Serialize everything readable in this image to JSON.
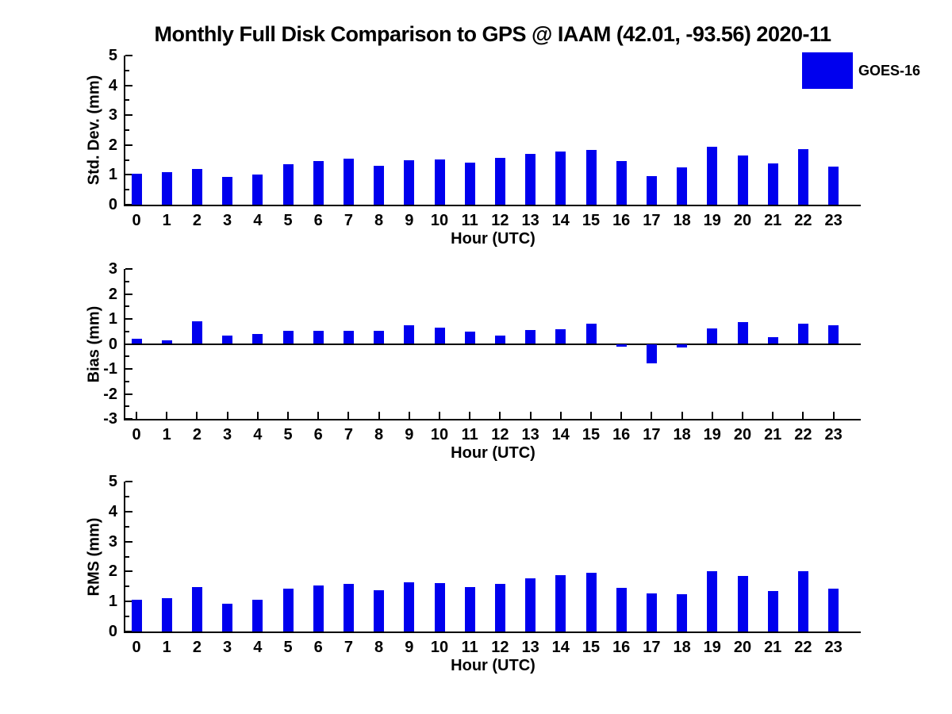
{
  "title": "Monthly Full Disk Comparison to GPS @ IAAM (42.01, -93.56) 2020-11",
  "legend": {
    "label": "GOES-16",
    "color": "#0000EE",
    "position": "top-right"
  },
  "colors": {
    "bar": "#0000EE",
    "axis": "#000000",
    "text": "#000000",
    "background": "#FFFFFF"
  },
  "chart_data": [
    {
      "type": "bar",
      "name": "std-dev-by-hour",
      "ylabel": "Std. Dev. (mm)",
      "xlabel": "Hour (UTC)",
      "ylim": [
        0,
        5
      ],
      "yticks": [
        0,
        1,
        2,
        3,
        4,
        5
      ],
      "grid": false,
      "categories": [
        "0",
        "1",
        "2",
        "3",
        "4",
        "5",
        "6",
        "7",
        "8",
        "9",
        "10",
        "11",
        "12",
        "13",
        "14",
        "15",
        "16",
        "17",
        "18",
        "19",
        "20",
        "21",
        "22",
        "23"
      ],
      "values": [
        1.05,
        1.1,
        1.2,
        0.92,
        1.0,
        1.35,
        1.47,
        1.53,
        1.3,
        1.5,
        1.52,
        1.4,
        1.57,
        1.7,
        1.78,
        1.83,
        1.47,
        0.97,
        1.25,
        1.95,
        1.64,
        1.38,
        1.87,
        1.27
      ]
    },
    {
      "type": "bar",
      "name": "bias-by-hour",
      "ylabel": "Bias (mm)",
      "xlabel": "Hour (UTC)",
      "ylim": [
        -3,
        3
      ],
      "yticks": [
        -3,
        -2,
        -1,
        0,
        1,
        2,
        3
      ],
      "grid": false,
      "categories": [
        "0",
        "1",
        "2",
        "3",
        "4",
        "5",
        "6",
        "7",
        "8",
        "9",
        "10",
        "11",
        "12",
        "13",
        "14",
        "15",
        "16",
        "17",
        "18",
        "19",
        "20",
        "21",
        "22",
        "23"
      ],
      "values": [
        0.22,
        0.15,
        0.92,
        0.32,
        0.4,
        0.52,
        0.52,
        0.52,
        0.52,
        0.74,
        0.64,
        0.49,
        0.34,
        0.56,
        0.58,
        0.82,
        -0.1,
        -0.78,
        -0.15,
        0.62,
        0.86,
        0.28,
        0.8,
        0.74
      ]
    },
    {
      "type": "bar",
      "name": "rms-by-hour",
      "ylabel": "RMS (mm)",
      "xlabel": "Hour (UTC)",
      "ylim": [
        0,
        5
      ],
      "yticks": [
        0,
        1,
        2,
        3,
        4,
        5
      ],
      "grid": false,
      "categories": [
        "0",
        "1",
        "2",
        "3",
        "4",
        "5",
        "6",
        "7",
        "8",
        "9",
        "10",
        "11",
        "12",
        "13",
        "14",
        "15",
        "16",
        "17",
        "18",
        "19",
        "20",
        "21",
        "22",
        "23"
      ],
      "values": [
        1.05,
        1.1,
        1.47,
        0.93,
        1.05,
        1.42,
        1.53,
        1.58,
        1.37,
        1.65,
        1.62,
        1.47,
        1.58,
        1.77,
        1.87,
        1.96,
        1.45,
        1.27,
        1.24,
        2.0,
        1.85,
        1.36,
        2.0,
        1.42
      ]
    }
  ]
}
